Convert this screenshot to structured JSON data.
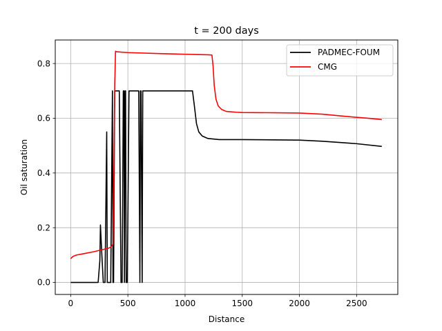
{
  "chart_data": {
    "type": "line",
    "title": "t = 200 days",
    "xlabel": "Distance",
    "ylabel": "Oil saturation",
    "xlim": [
      -135,
      2860
    ],
    "ylim": [
      -0.044,
      0.886
    ],
    "xticks": [
      0,
      500,
      1000,
      1500,
      2000,
      2500
    ],
    "xtick_labels": [
      "0",
      "500",
      "1000",
      "1500",
      "2000",
      "2500"
    ],
    "yticks": [
      0.0,
      0.2,
      0.4,
      0.6,
      0.8
    ],
    "ytick_labels": [
      "0.0",
      "0.2",
      "0.4",
      "0.6",
      "0.8"
    ],
    "grid": true,
    "legend_position": "top-right",
    "series": [
      {
        "name": "PADMEC-FOUM",
        "color": "#000000",
        "x": [
          0,
          240,
          255,
          260,
          275,
          285,
          300,
          315,
          320,
          335,
          350,
          365,
          370,
          375,
          385,
          390,
          395,
          425,
          440,
          450,
          460,
          465,
          470,
          475,
          480,
          485,
          495,
          510,
          520,
          525,
          530,
          595,
          605,
          610,
          615,
          625,
          630,
          640,
          650,
          1000,
          1065,
          1080,
          1100,
          1120,
          1150,
          1200,
          1300,
          1500,
          2000,
          2200,
          2500,
          2720
        ],
        "values": [
          0.0,
          0.0,
          0.08,
          0.21,
          0.08,
          0.0,
          0.0,
          0.55,
          0.0,
          0.0,
          0.0,
          0.7,
          0.0,
          0.0,
          0.7,
          0.7,
          0.7,
          0.7,
          0.0,
          0.0,
          0.7,
          0.7,
          0.0,
          0.7,
          0.7,
          0.0,
          0.0,
          0.7,
          0.7,
          0.7,
          0.7,
          0.7,
          0.0,
          0.7,
          0.7,
          0.0,
          0.7,
          0.7,
          0.7,
          0.7,
          0.7,
          0.65,
          0.58,
          0.55,
          0.535,
          0.526,
          0.522,
          0.522,
          0.52,
          0.516,
          0.507,
          0.497
        ]
      },
      {
        "name": "CMG",
        "color": "#ff0000",
        "x": [
          0,
          20,
          50,
          100,
          200,
          300,
          330,
          350,
          360,
          370,
          375,
          385,
          392,
          400,
          500,
          800,
          1000,
          1100,
          1200,
          1235,
          1245,
          1255,
          1270,
          1290,
          1320,
          1360,
          1450,
          1500,
          1800,
          2000,
          2200,
          2400,
          2600,
          2720
        ],
        "values": [
          0.087,
          0.095,
          0.1,
          0.104,
          0.112,
          0.122,
          0.125,
          0.129,
          0.134,
          0.14,
          0.28,
          0.72,
          0.845,
          0.843,
          0.84,
          0.836,
          0.834,
          0.833,
          0.832,
          0.831,
          0.79,
          0.72,
          0.67,
          0.645,
          0.632,
          0.625,
          0.622,
          0.621,
          0.62,
          0.619,
          0.615,
          0.607,
          0.6,
          0.595
        ]
      }
    ]
  }
}
